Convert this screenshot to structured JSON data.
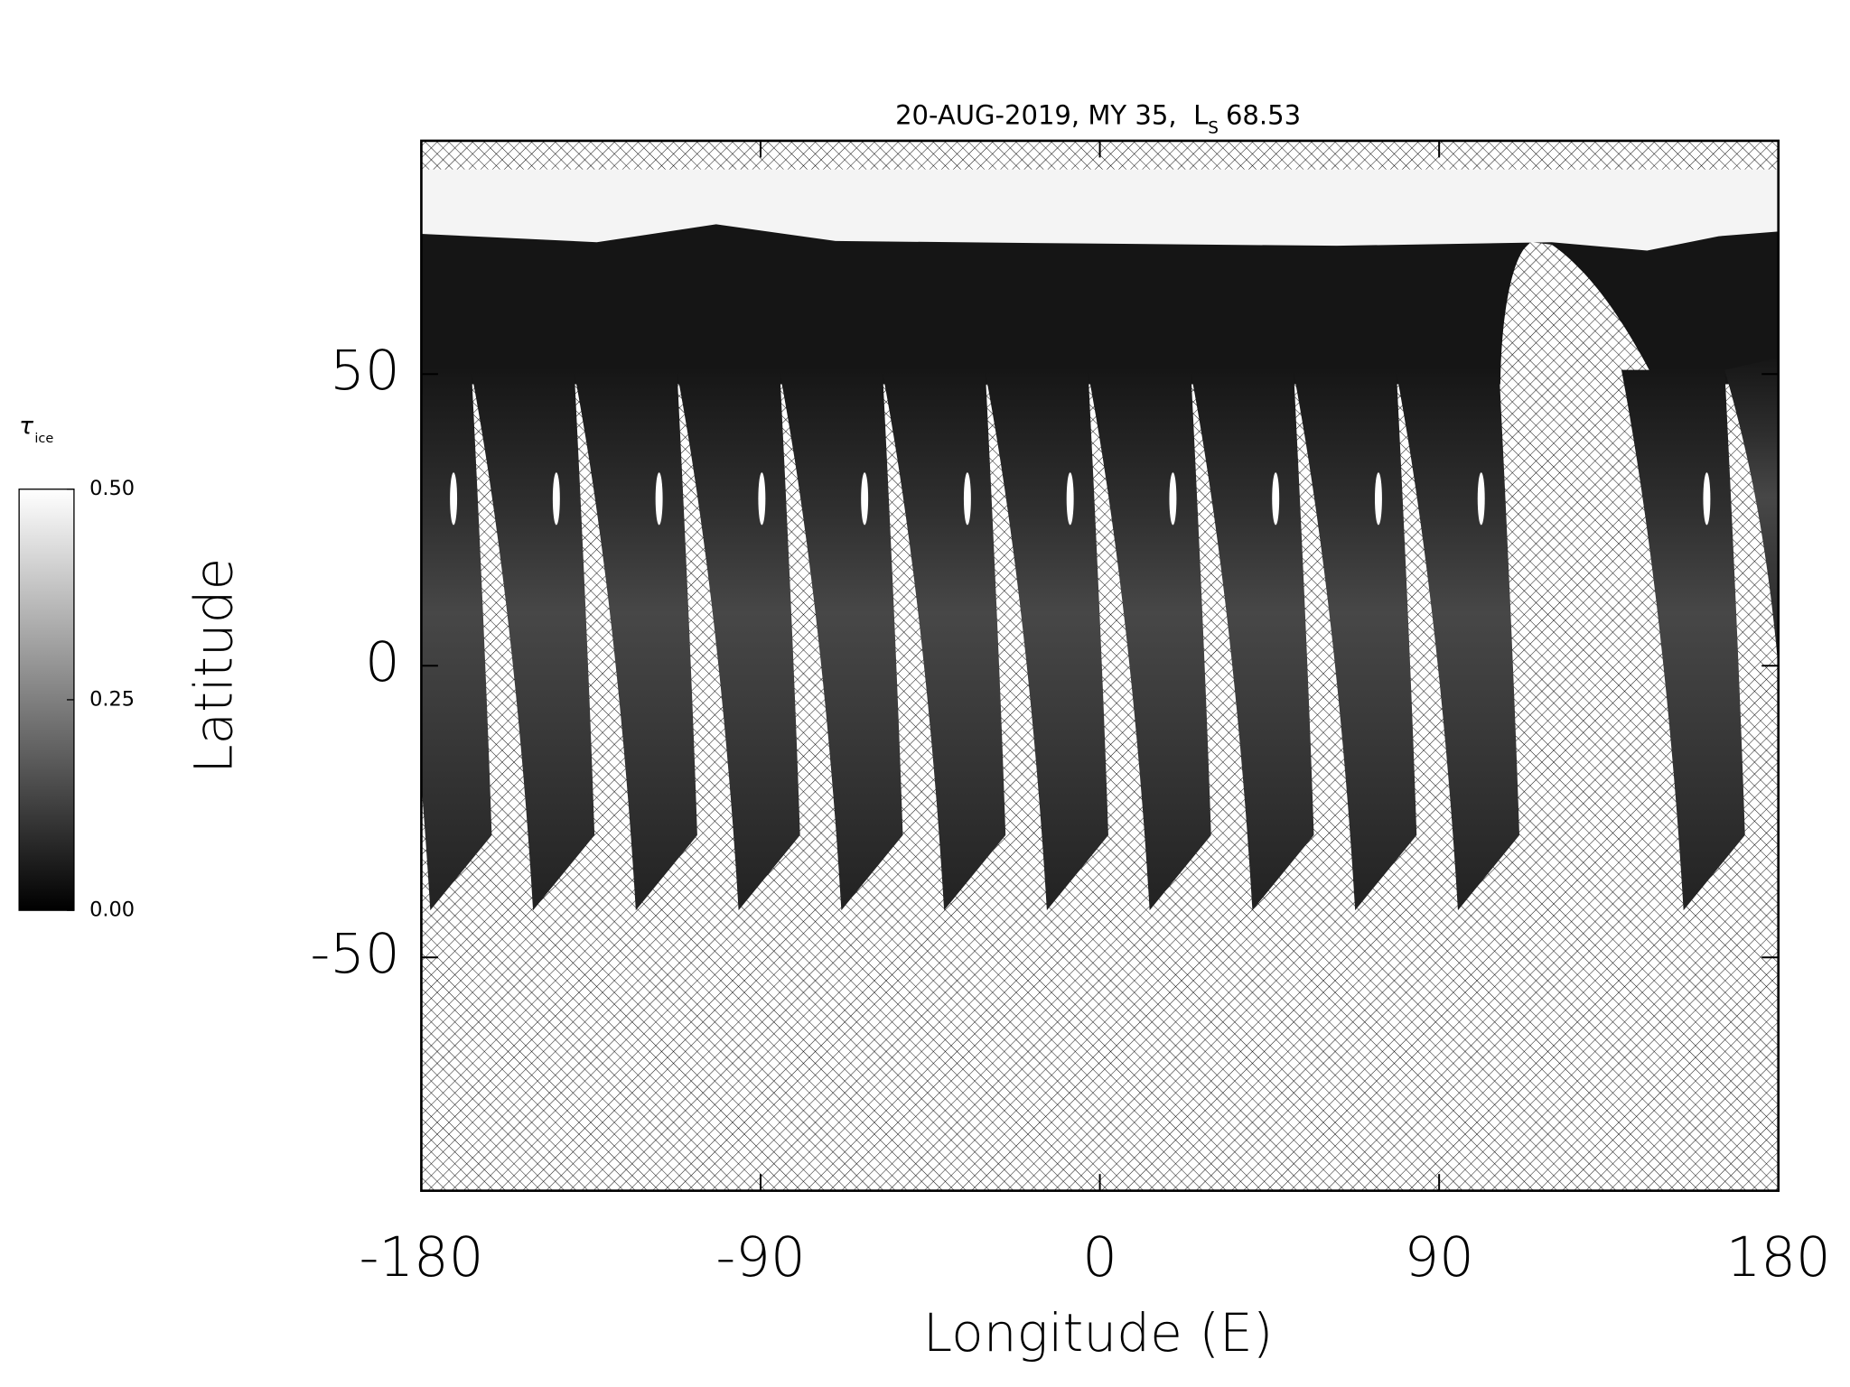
{
  "chart_data": {
    "type": "map",
    "title": {
      "text": "20-AUG-2019, MY 35,  L",
      "subscript": "S",
      "value": 68.53
    },
    "x_label": "Longitude (E)",
    "y_label": "Latitude",
    "xlim": [
      -180,
      180
    ],
    "ylim": [
      -90,
      90
    ],
    "xticks": [
      -180,
      -90,
      0,
      90,
      180
    ],
    "yticks": [
      -50,
      0,
      50
    ],
    "grid": false,
    "colorbar": {
      "label": "τ",
      "label_subscript": "ice",
      "lim": [
        0,
        0.5
      ],
      "ticks": [
        {
          "value": 0,
          "label": "0.00"
        },
        {
          "value": 0.25,
          "label": "0.25"
        },
        {
          "value": 0.5,
          "label": "0.50"
        }
      ]
    }
  }
}
